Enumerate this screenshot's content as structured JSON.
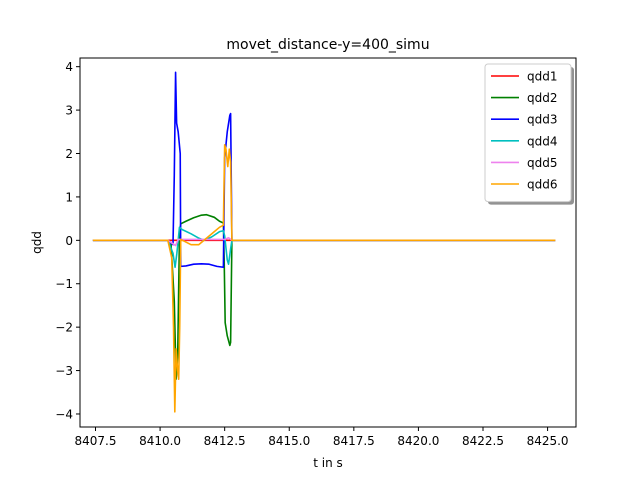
{
  "chart_data": {
    "type": "line",
    "title": "movet_distance-y=400_simu",
    "xlabel": "t in s",
    "ylabel": "qdd",
    "xlim": [
      8406.9,
      8426.1
    ],
    "ylim": [
      -4.3,
      4.2
    ],
    "xticks": [
      8407.5,
      8410.0,
      8412.5,
      8415.0,
      8417.5,
      8420.0,
      8422.5,
      8425.0
    ],
    "xtick_labels": [
      "8407.5",
      "8410.0",
      "8412.5",
      "8415.0",
      "8417.5",
      "8420.0",
      "8422.5",
      "8425.0"
    ],
    "yticks": [
      -4,
      -3,
      -2,
      -1,
      0,
      1,
      2,
      3,
      4
    ],
    "ytick_labels": [
      "−4",
      "−3",
      "−2",
      "−1",
      "0",
      "1",
      "2",
      "3",
      "4"
    ],
    "grid": false,
    "legend_position": "top-right",
    "series": [
      {
        "name": "qdd1",
        "color": "#ff0000",
        "points": [
          [
            8407.4,
            0
          ],
          [
            8425.3,
            0
          ]
        ]
      },
      {
        "name": "qdd2",
        "color": "#008000",
        "points": [
          [
            8407.4,
            0
          ],
          [
            8410.3,
            0
          ],
          [
            8410.42,
            -0.05
          ],
          [
            8410.55,
            -1.4
          ],
          [
            8410.62,
            -3.2
          ],
          [
            8410.68,
            -2.7
          ],
          [
            8410.75,
            0.1
          ],
          [
            8410.8,
            0.38
          ],
          [
            8411.0,
            0.44
          ],
          [
            8411.3,
            0.52
          ],
          [
            8411.6,
            0.58
          ],
          [
            8411.8,
            0.59
          ],
          [
            8412.1,
            0.53
          ],
          [
            8412.3,
            0.44
          ],
          [
            8412.45,
            0.4
          ],
          [
            8412.48,
            -0.4
          ],
          [
            8412.52,
            -1.9
          ],
          [
            8412.6,
            -2.2
          ],
          [
            8412.7,
            -2.42
          ],
          [
            8412.73,
            -2.35
          ],
          [
            8412.78,
            0
          ],
          [
            8425.3,
            0
          ]
        ]
      },
      {
        "name": "qdd3",
        "color": "#0000ff",
        "points": [
          [
            8407.4,
            0
          ],
          [
            8410.3,
            0
          ],
          [
            8410.5,
            -0.1
          ],
          [
            8410.55,
            1.5
          ],
          [
            8410.6,
            3.87
          ],
          [
            8410.64,
            2.7
          ],
          [
            8410.7,
            2.5
          ],
          [
            8410.78,
            2.0
          ],
          [
            8410.8,
            -0.6
          ],
          [
            8411.0,
            -0.59
          ],
          [
            8411.3,
            -0.55
          ],
          [
            8411.6,
            -0.54
          ],
          [
            8411.9,
            -0.55
          ],
          [
            8412.2,
            -0.6
          ],
          [
            8412.45,
            -0.62
          ],
          [
            8412.5,
            1.9
          ],
          [
            8412.6,
            2.5
          ],
          [
            8412.7,
            2.88
          ],
          [
            8412.73,
            2.92
          ],
          [
            8412.78,
            0
          ],
          [
            8425.3,
            0
          ]
        ]
      },
      {
        "name": "qdd4",
        "color": "#00bfbf",
        "points": [
          [
            8407.4,
            0
          ],
          [
            8410.3,
            0
          ],
          [
            8410.5,
            -0.3
          ],
          [
            8410.58,
            -0.62
          ],
          [
            8410.65,
            -0.3
          ],
          [
            8410.75,
            0.3
          ],
          [
            8410.85,
            0.25
          ],
          [
            8411.2,
            0.15
          ],
          [
            8411.5,
            0.05
          ],
          [
            8411.7,
            0.0
          ],
          [
            8412.0,
            0.08
          ],
          [
            8412.3,
            0.2
          ],
          [
            8412.45,
            0.22
          ],
          [
            8412.5,
            0.1
          ],
          [
            8412.6,
            -0.45
          ],
          [
            8412.65,
            -0.55
          ],
          [
            8412.73,
            -0.2
          ],
          [
            8412.78,
            0
          ],
          [
            8425.3,
            0
          ]
        ]
      },
      {
        "name": "qdd5",
        "color": "#ee82ee",
        "points": [
          [
            8407.4,
            0
          ],
          [
            8410.3,
            0
          ],
          [
            8410.5,
            -0.08
          ],
          [
            8410.6,
            -0.12
          ],
          [
            8410.7,
            0.02
          ],
          [
            8411.6,
            0.02
          ],
          [
            8412.5,
            0.02
          ],
          [
            8412.65,
            0.06
          ],
          [
            8412.78,
            0
          ],
          [
            8425.3,
            0
          ]
        ]
      },
      {
        "name": "qdd6",
        "color": "#ffa500",
        "points": [
          [
            8407.4,
            0
          ],
          [
            8410.3,
            0
          ],
          [
            8410.45,
            -0.4
          ],
          [
            8410.52,
            -2.0
          ],
          [
            8410.57,
            -3.95
          ],
          [
            8410.62,
            -2.5
          ],
          [
            8410.68,
            -3.0
          ],
          [
            8410.72,
            -3.2
          ],
          [
            8410.76,
            -2.0
          ],
          [
            8410.8,
            0.02
          ],
          [
            8411.2,
            -0.1
          ],
          [
            8411.5,
            -0.1
          ],
          [
            8411.8,
            0.05
          ],
          [
            8412.1,
            0.2
          ],
          [
            8412.3,
            0.3
          ],
          [
            8412.45,
            0.35
          ],
          [
            8412.5,
            2.2
          ],
          [
            8412.55,
            2.1
          ],
          [
            8412.62,
            1.7
          ],
          [
            8412.68,
            2.1
          ],
          [
            8412.73,
            1.8
          ],
          [
            8412.78,
            0
          ],
          [
            8425.3,
            0
          ]
        ]
      }
    ]
  }
}
